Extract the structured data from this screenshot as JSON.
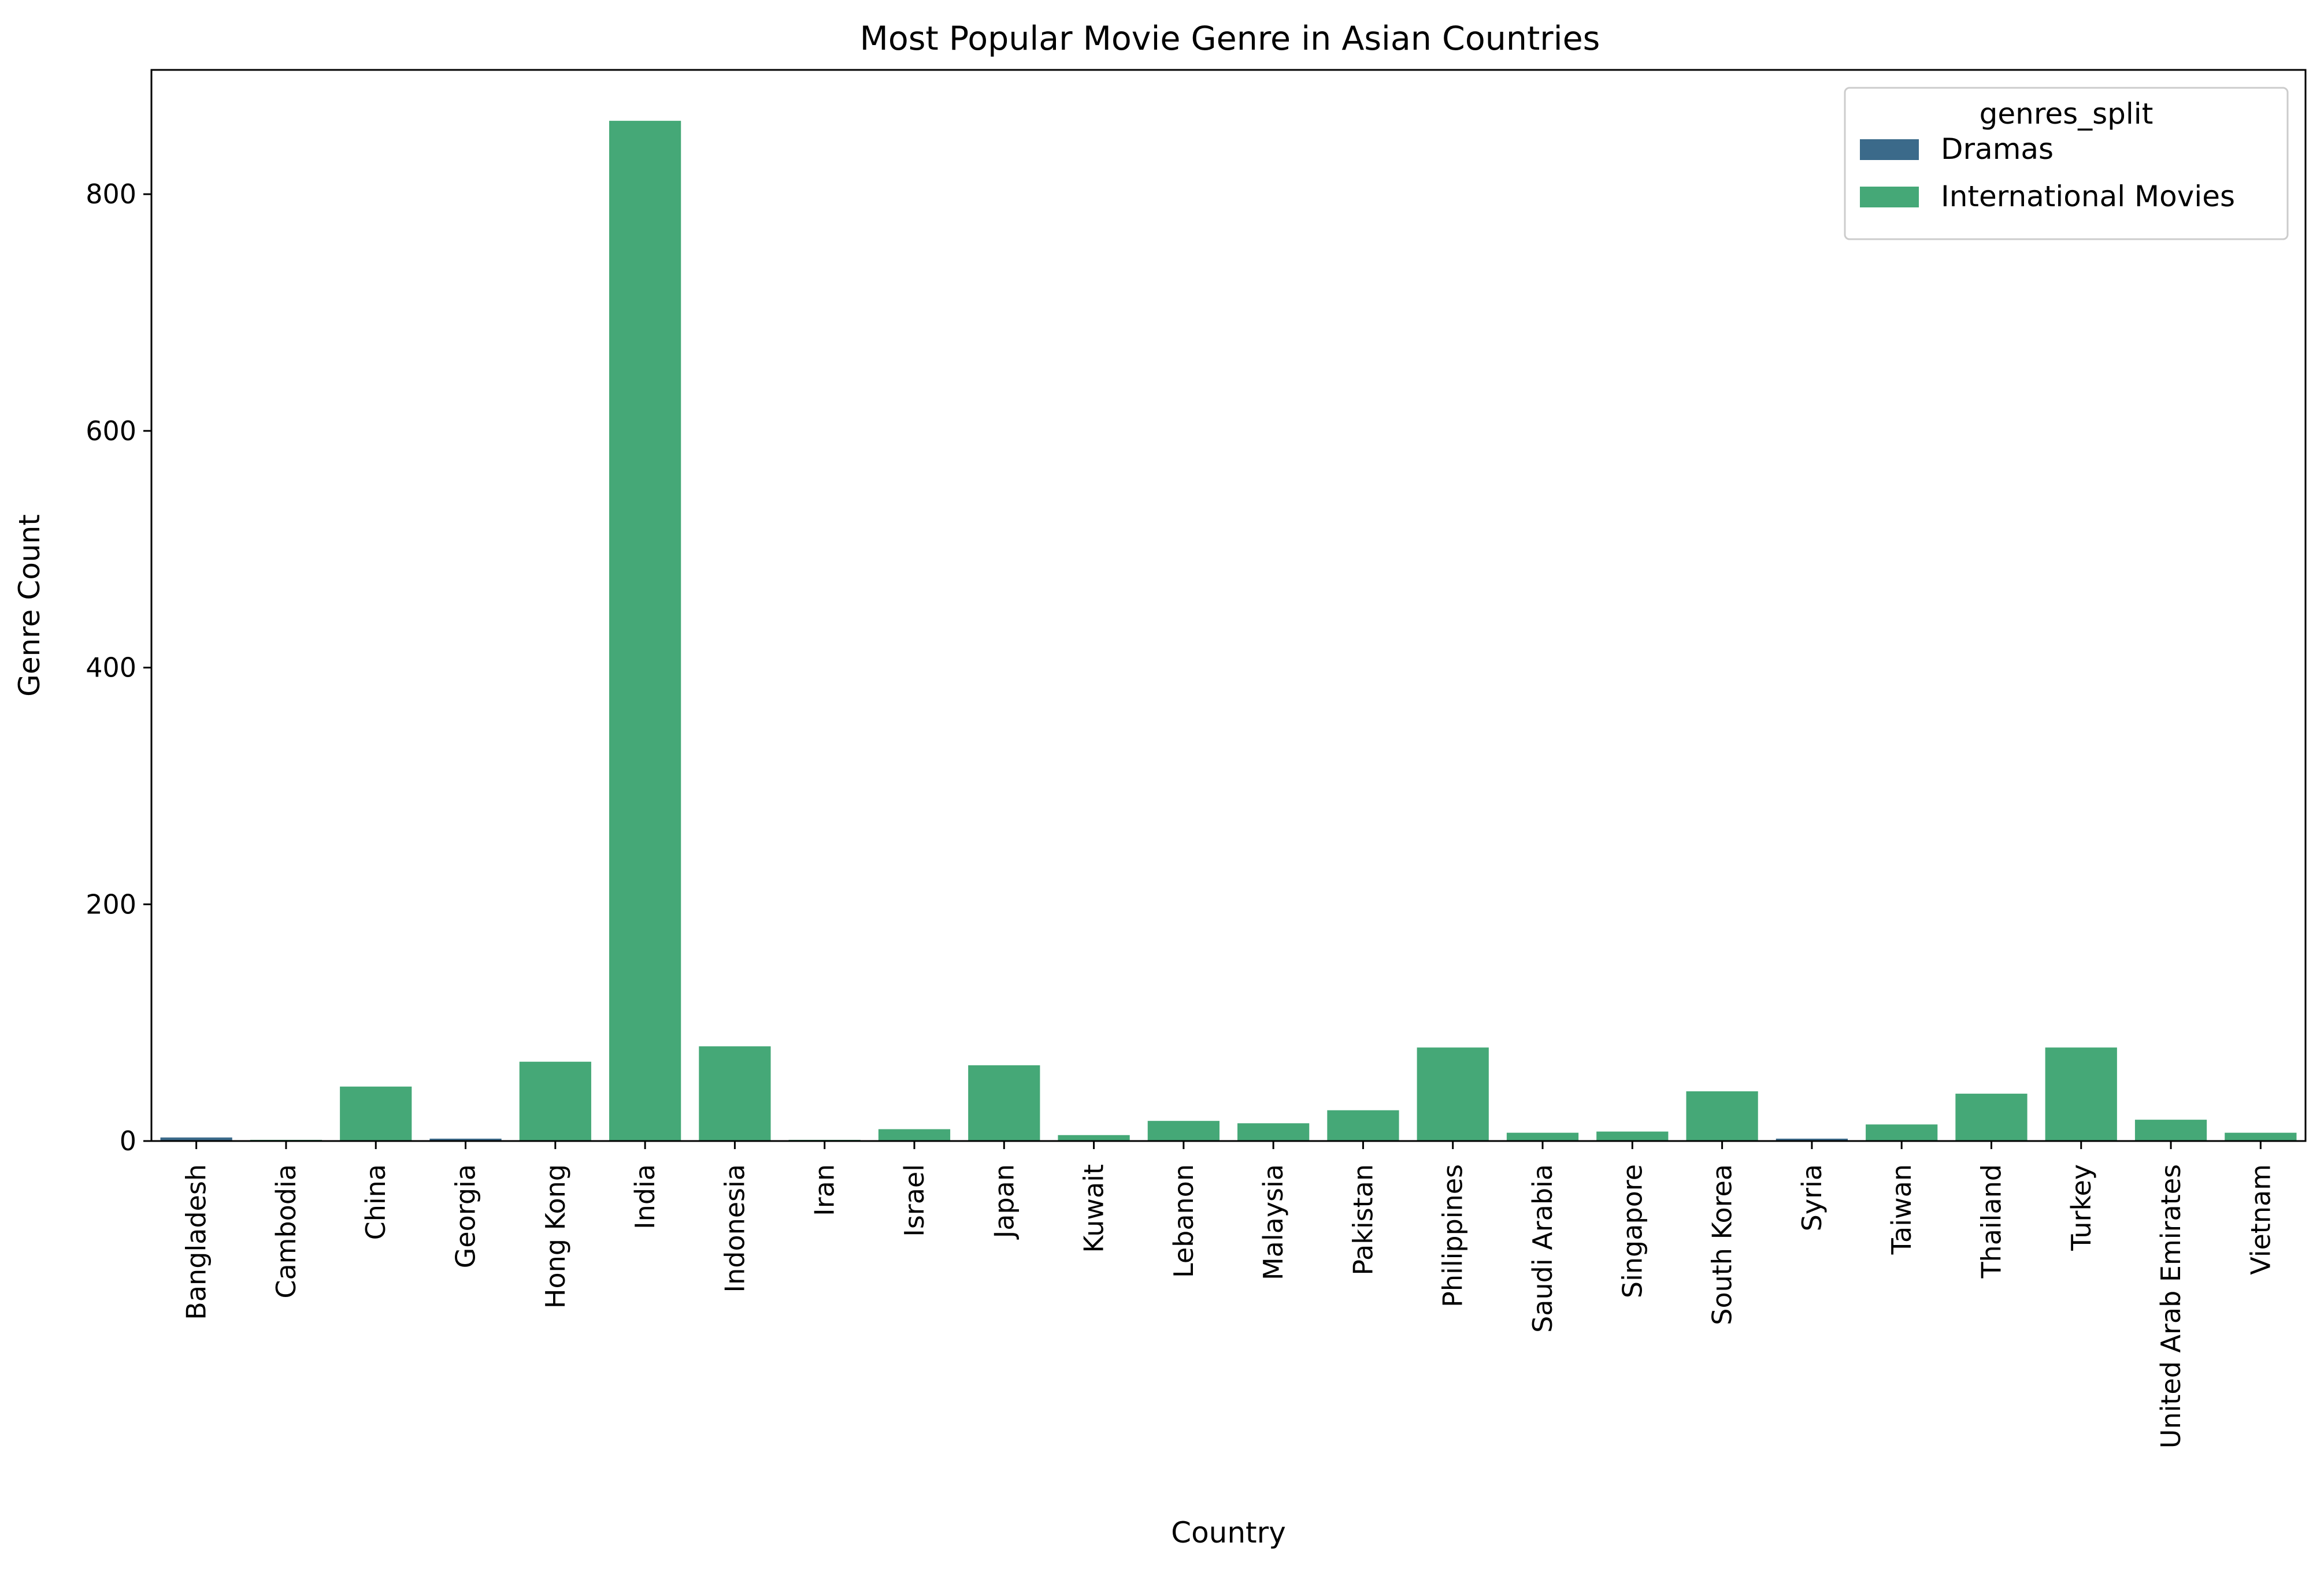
{
  "chart_data": {
    "type": "bar",
    "title": "Most Popular Movie Genre in Asian Countries",
    "xlabel": "Country",
    "ylabel": "Genre Count",
    "ylim": [
      0,
      905
    ],
    "yticks": [
      0,
      200,
      400,
      600,
      800
    ],
    "grid": false,
    "legend": {
      "title": "genres_split",
      "placement": "top-right"
    },
    "categories": [
      "Bangladesh",
      "Cambodia",
      "China",
      "Georgia",
      "Hong Kong",
      "India",
      "Indonesia",
      "Iran",
      "Israel",
      "Japan",
      "Kuwait",
      "Lebanon",
      "Malaysia",
      "Pakistan",
      "Philippines",
      "Saudi Arabia",
      "Singapore",
      "South Korea",
      "Syria",
      "Taiwan",
      "Thailand",
      "Turkey",
      "United Arab Emirates",
      "Vietnam"
    ],
    "bars": [
      {
        "series": "Dramas",
        "value": 3
      },
      {
        "series": "International Movies",
        "value": 1
      },
      {
        "series": "International Movies",
        "value": 46
      },
      {
        "series": "Dramas",
        "value": 2
      },
      {
        "series": "International Movies",
        "value": 67
      },
      {
        "series": "International Movies",
        "value": 862
      },
      {
        "series": "International Movies",
        "value": 80
      },
      {
        "series": "International Movies",
        "value": 1
      },
      {
        "series": "International Movies",
        "value": 10
      },
      {
        "series": "International Movies",
        "value": 64
      },
      {
        "series": "International Movies",
        "value": 5
      },
      {
        "series": "International Movies",
        "value": 17
      },
      {
        "series": "International Movies",
        "value": 15
      },
      {
        "series": "International Movies",
        "value": 26
      },
      {
        "series": "International Movies",
        "value": 79
      },
      {
        "series": "International Movies",
        "value": 7
      },
      {
        "series": "International Movies",
        "value": 8
      },
      {
        "series": "International Movies",
        "value": 42
      },
      {
        "series": "Dramas",
        "value": 2
      },
      {
        "series": "International Movies",
        "value": 14
      },
      {
        "series": "International Movies",
        "value": 40
      },
      {
        "series": "International Movies",
        "value": 79
      },
      {
        "series": "International Movies",
        "value": 18
      },
      {
        "series": "International Movies",
        "value": 7
      }
    ],
    "series": [
      {
        "name": "Dramas",
        "color": "#3b6a8a"
      },
      {
        "name": "International Movies",
        "color": "#45a877"
      }
    ]
  }
}
